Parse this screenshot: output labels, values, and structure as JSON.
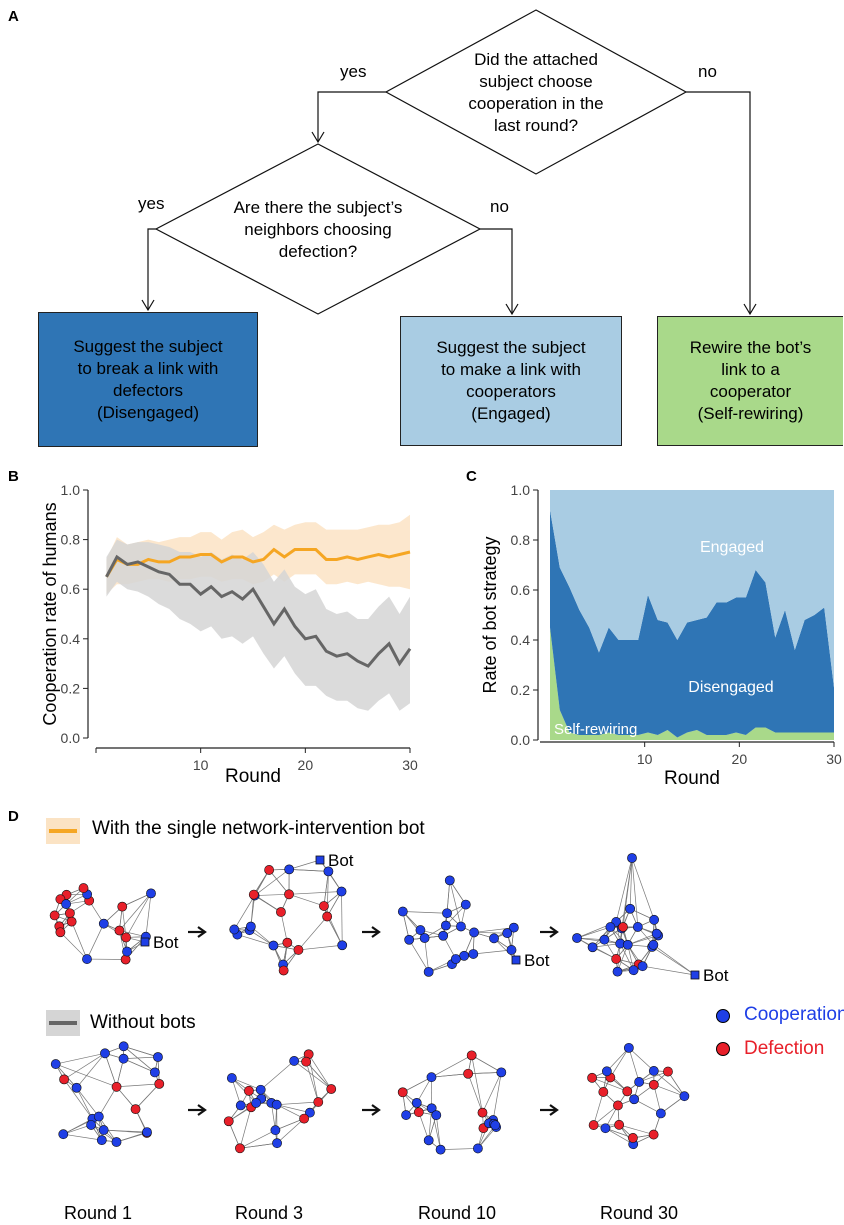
{
  "panels": {
    "a": "A",
    "b": "B",
    "c": "C",
    "d": "D"
  },
  "flow": {
    "q1": "Did the attached\nsubject choose\ncooperation in the\nlast round?",
    "q2": "Are there the subject’s\nneighbors choosing\ndefection?",
    "yes": "yes",
    "no": "no",
    "box_disengaged": "Suggest the subject\nto break a link with\ndefectors\n(Disengaged)",
    "box_engaged": "Suggest the subject\nto make a link with\ncooperators\n(Engaged)",
    "box_rewire": "Rewire the bot’s\nlink to a\ncooperator\n(Self-rewiring)",
    "colors": {
      "disengaged": "#2f75b5",
      "engaged": "#a9cce3",
      "rewire": "#a9d98a"
    }
  },
  "chart_data": [
    {
      "type": "line",
      "ylabel": "Cooperation rate of humans",
      "xlabel": "Round",
      "xlim": [
        0,
        30
      ],
      "ylim": [
        0,
        1
      ],
      "xticks": [
        "10",
        "20",
        "30"
      ],
      "yticks": [
        "0.0",
        "0.2",
        "0.4",
        "0.6",
        "0.8",
        "1.0"
      ],
      "x": [
        1,
        2,
        3,
        4,
        5,
        6,
        7,
        8,
        9,
        10,
        11,
        12,
        13,
        14,
        15,
        16,
        17,
        18,
        19,
        20,
        21,
        22,
        23,
        24,
        25,
        26,
        27,
        28,
        29,
        30
      ],
      "series": [
        {
          "color": "#f5a623",
          "band_color": "#fbe3c4",
          "values": [
            0.65,
            0.72,
            0.7,
            0.7,
            0.72,
            0.71,
            0.71,
            0.73,
            0.73,
            0.74,
            0.74,
            0.71,
            0.73,
            0.73,
            0.71,
            0.72,
            0.76,
            0.73,
            0.76,
            0.76,
            0.76,
            0.72,
            0.72,
            0.73,
            0.72,
            0.73,
            0.74,
            0.73,
            0.74,
            0.75
          ],
          "lower": [
            0.58,
            0.62,
            0.62,
            0.63,
            0.64,
            0.64,
            0.63,
            0.64,
            0.64,
            0.65,
            0.65,
            0.63,
            0.64,
            0.64,
            0.62,
            0.63,
            0.66,
            0.63,
            0.66,
            0.66,
            0.66,
            0.62,
            0.62,
            0.63,
            0.62,
            0.63,
            0.62,
            0.61,
            0.61,
            0.6
          ],
          "upper": [
            0.72,
            0.81,
            0.78,
            0.79,
            0.8,
            0.79,
            0.8,
            0.81,
            0.81,
            0.83,
            0.83,
            0.8,
            0.83,
            0.84,
            0.81,
            0.83,
            0.86,
            0.84,
            0.86,
            0.87,
            0.87,
            0.84,
            0.84,
            0.84,
            0.84,
            0.85,
            0.86,
            0.86,
            0.87,
            0.9
          ]
        },
        {
          "color": "#666666",
          "band_color": "#d5d5d5",
          "values": [
            0.65,
            0.73,
            0.7,
            0.71,
            0.69,
            0.67,
            0.66,
            0.62,
            0.62,
            0.58,
            0.61,
            0.57,
            0.59,
            0.56,
            0.6,
            0.53,
            0.46,
            0.52,
            0.45,
            0.4,
            0.41,
            0.35,
            0.33,
            0.34,
            0.31,
            0.29,
            0.34,
            0.38,
            0.3,
            0.36
          ],
          "lower": [
            0.57,
            0.63,
            0.6,
            0.59,
            0.57,
            0.54,
            0.52,
            0.48,
            0.46,
            0.43,
            0.45,
            0.4,
            0.41,
            0.38,
            0.41,
            0.34,
            0.28,
            0.33,
            0.26,
            0.21,
            0.21,
            0.17,
            0.15,
            0.15,
            0.12,
            0.11,
            0.15,
            0.18,
            0.11,
            0.14
          ],
          "upper": [
            0.73,
            0.8,
            0.78,
            0.79,
            0.79,
            0.78,
            0.77,
            0.75,
            0.75,
            0.73,
            0.75,
            0.72,
            0.74,
            0.72,
            0.75,
            0.7,
            0.63,
            0.68,
            0.61,
            0.58,
            0.6,
            0.52,
            0.5,
            0.51,
            0.48,
            0.48,
            0.53,
            0.57,
            0.5,
            0.57
          ]
        }
      ]
    },
    {
      "type": "area",
      "ylabel": "Rate of bot strategy",
      "xlabel": "Round",
      "xlim": [
        0,
        30
      ],
      "ylim": [
        0,
        1
      ],
      "xticks": [
        "10",
        "20",
        "30"
      ],
      "yticks": [
        "0.0",
        "0.2",
        "0.4",
        "0.6",
        "0.8",
        "1.0"
      ],
      "x": [
        1,
        2,
        3,
        4,
        5,
        6,
        7,
        8,
        9,
        10,
        11,
        12,
        13,
        14,
        15,
        16,
        17,
        18,
        19,
        20,
        21,
        22,
        23,
        24,
        25,
        26,
        27,
        28,
        29,
        30
      ],
      "series": [
        {
          "name": "Self-rewiring",
          "color": "#a9d98a",
          "values": [
            0.45,
            0.12,
            0.03,
            0.02,
            0.02,
            0.02,
            0.03,
            0.02,
            0.02,
            0.02,
            0.03,
            0.02,
            0.04,
            0.01,
            0.03,
            0.04,
            0.02,
            0.02,
            0.02,
            0.03,
            0.02,
            0.05,
            0.05,
            0.03,
            0.03,
            0.03,
            0.03,
            0.03,
            0.03,
            0.03
          ]
        },
        {
          "name": "Disengaged",
          "color": "#2f75b5",
          "values": [
            0.47,
            0.57,
            0.58,
            0.5,
            0.43,
            0.33,
            0.42,
            0.38,
            0.38,
            0.38,
            0.55,
            0.46,
            0.43,
            0.39,
            0.44,
            0.44,
            0.47,
            0.53,
            0.53,
            0.54,
            0.55,
            0.63,
            0.58,
            0.38,
            0.49,
            0.33,
            0.45,
            0.47,
            0.5,
            0.18
          ]
        },
        {
          "name": "Engaged",
          "color": "#a9cce3",
          "values": [
            0.08,
            0.31,
            0.39,
            0.48,
            0.55,
            0.65,
            0.55,
            0.6,
            0.6,
            0.6,
            0.42,
            0.52,
            0.53,
            0.6,
            0.53,
            0.52,
            0.51,
            0.45,
            0.45,
            0.43,
            0.43,
            0.32,
            0.37,
            0.59,
            0.48,
            0.64,
            0.52,
            0.5,
            0.47,
            0.79
          ]
        }
      ]
    }
  ],
  "networks": {
    "legend_bot": "With the single network-intervention bot",
    "legend_nobot": "Without bots",
    "bot_label": "Bot",
    "cooperation": "Cooperation",
    "defection": "Defection",
    "coop_color": "#1f3fe6",
    "defect_color": "#e8202a",
    "rounds": [
      "Round 1",
      "Round 3",
      "Round 10",
      "Round 30"
    ]
  }
}
